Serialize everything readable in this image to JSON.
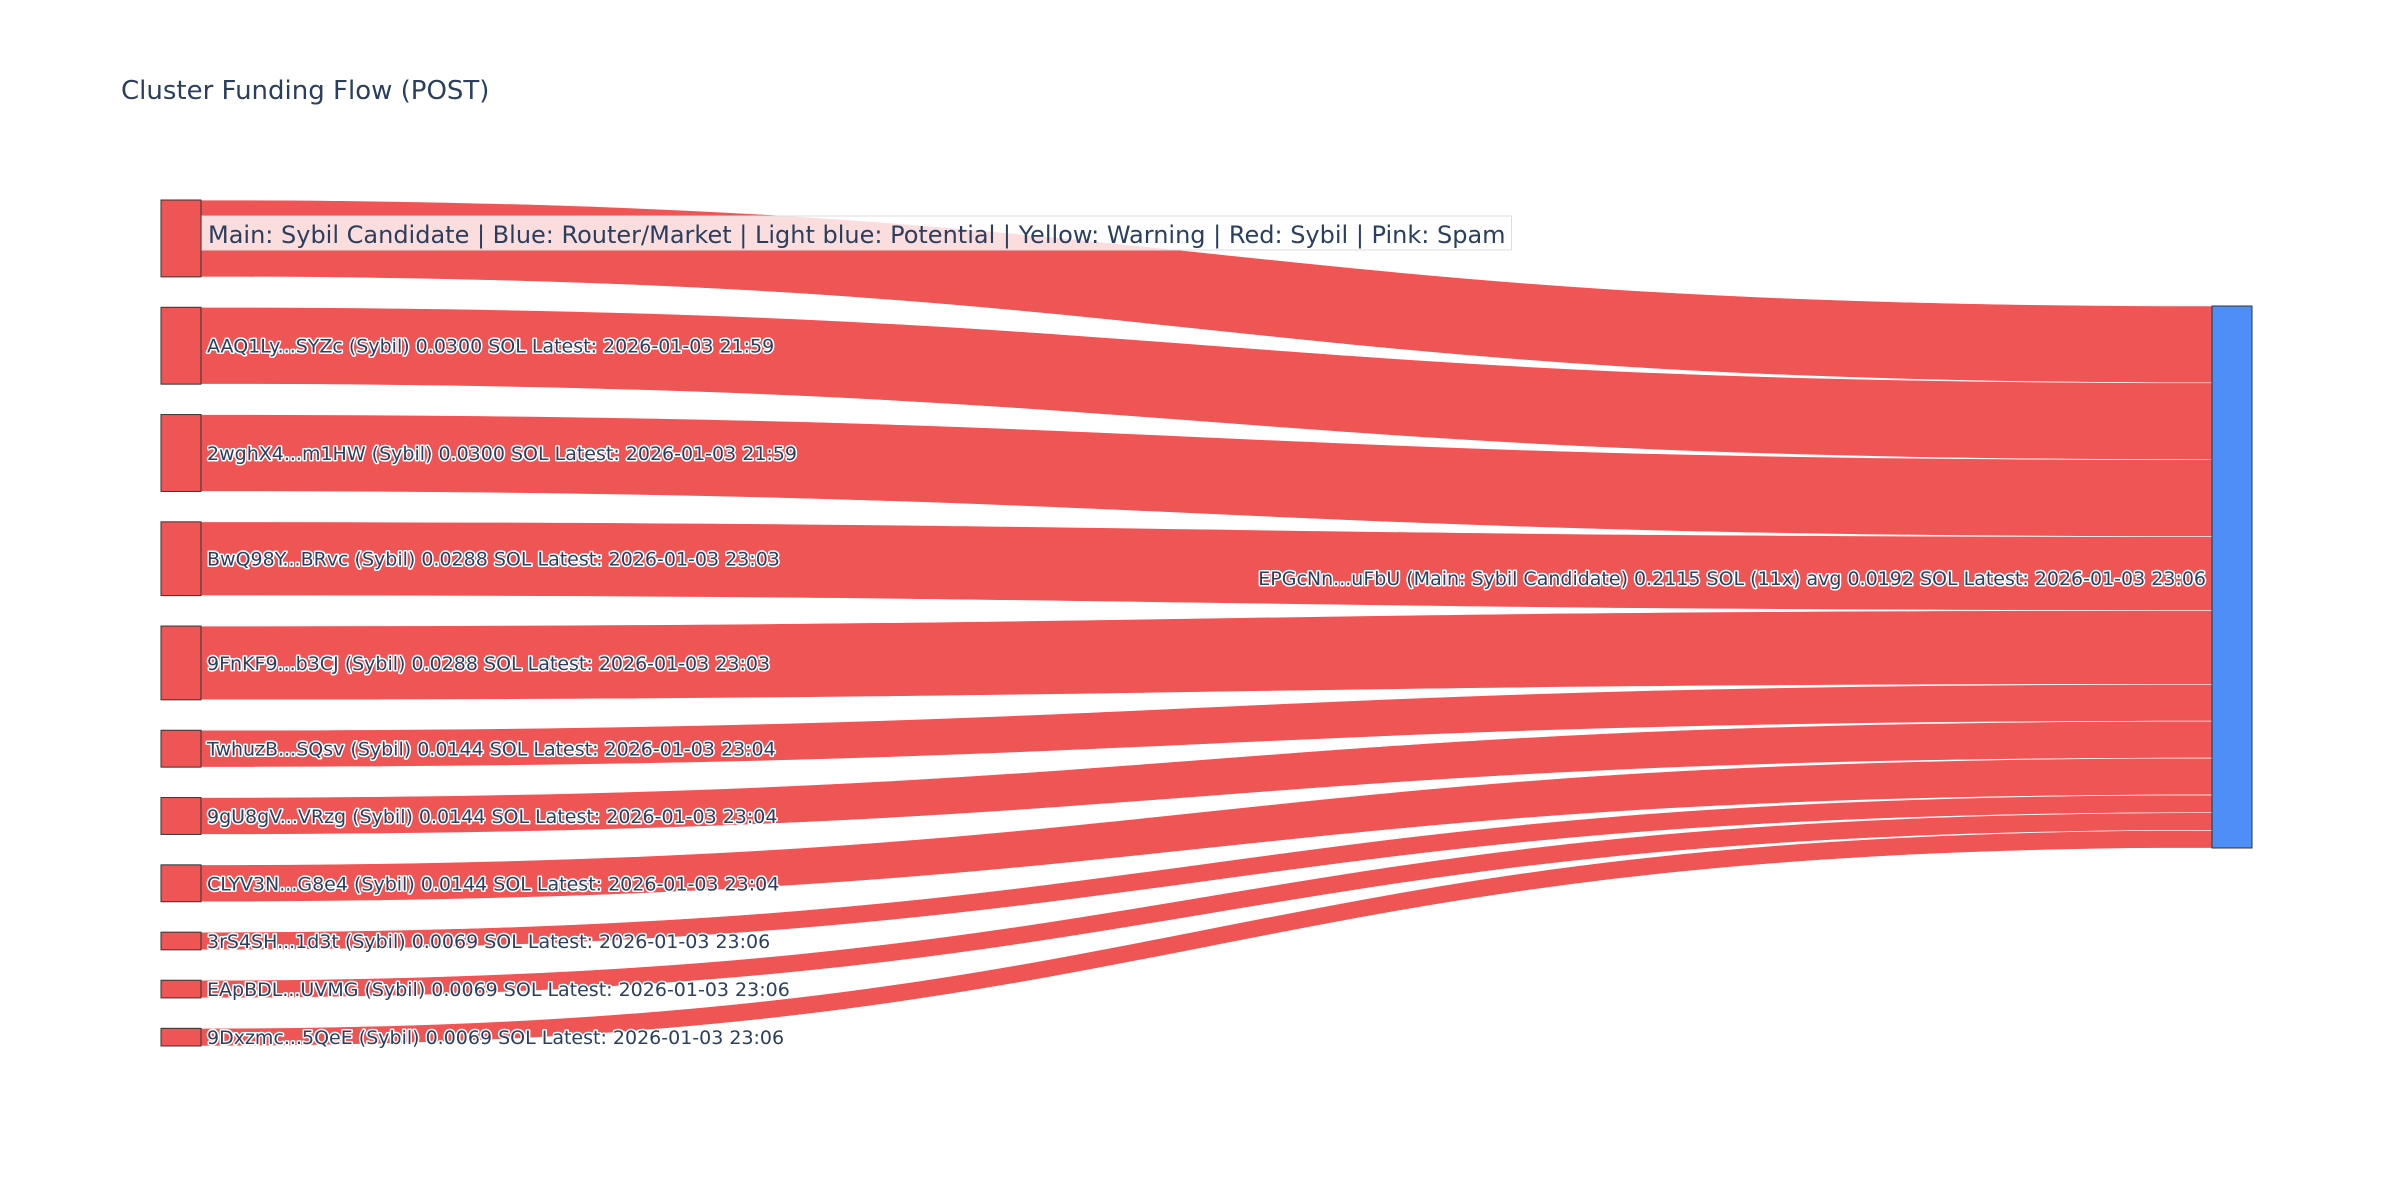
{
  "chart_data": {
    "type": "sankey",
    "title": "Cluster Funding Flow (POST)",
    "legend_text": "Main: Sybil Candidate | Blue: Router/Market | Light blue: Potential | Yellow: Warning | Red: Sybil | Pink: Spam",
    "colors": {
      "sybil": "#ef5555",
      "main": "#4e8ef7",
      "node_outline": "#333333",
      "text": "#2a3f5f"
    },
    "target": {
      "label": "EPGcNn...uFbU (Main: Sybil Candidate) 0.2115 SOL (11x) avg 0.0192 SOL Latest: 2026-01-03 23:06",
      "value": 0.2115,
      "color": "#4e8ef7"
    },
    "sources": [
      {
        "label": "",
        "value": 0.03,
        "color": "#ef5555"
      },
      {
        "label": "AAQ1Ly...SYZc (Sybil) 0.0300 SOL Latest: 2026-01-03 21:59",
        "value": 0.03,
        "color": "#ef5555"
      },
      {
        "label": "2wghX4...m1HW (Sybil) 0.0300 SOL Latest: 2026-01-03 21:59",
        "value": 0.03,
        "color": "#ef5555"
      },
      {
        "label": "BwQ98Y...BRvc (Sybil) 0.0288 SOL Latest: 2026-01-03 23:03",
        "value": 0.0288,
        "color": "#ef5555"
      },
      {
        "label": "9FnKF9...b3CJ (Sybil) 0.0288 SOL Latest: 2026-01-03 23:03",
        "value": 0.0288,
        "color": "#ef5555"
      },
      {
        "label": "TwhuzB...SQsv (Sybil) 0.0144 SOL Latest: 2026-01-03 23:04",
        "value": 0.0144,
        "color": "#ef5555"
      },
      {
        "label": "9gU8gV...VRzg (Sybil) 0.0144 SOL Latest: 2026-01-03 23:04",
        "value": 0.0144,
        "color": "#ef5555"
      },
      {
        "label": "CLYV3N...G8e4 (Sybil) 0.0144 SOL Latest: 2026-01-03 23:04",
        "value": 0.0144,
        "color": "#ef5555"
      },
      {
        "label": "3rS4SH...1d3t (Sybil) 0.0069 SOL Latest: 2026-01-03 23:06",
        "value": 0.0069,
        "color": "#ef5555"
      },
      {
        "label": "EApBDL...UVMG (Sybil) 0.0069 SOL Latest: 2026-01-03 23:06",
        "value": 0.0069,
        "color": "#ef5555"
      },
      {
        "label": "9Dxzmc...5QeE (Sybil) 0.0069 SOL Latest: 2026-01-03 23:06",
        "value": 0.0069,
        "color": "#ef5555"
      }
    ]
  }
}
